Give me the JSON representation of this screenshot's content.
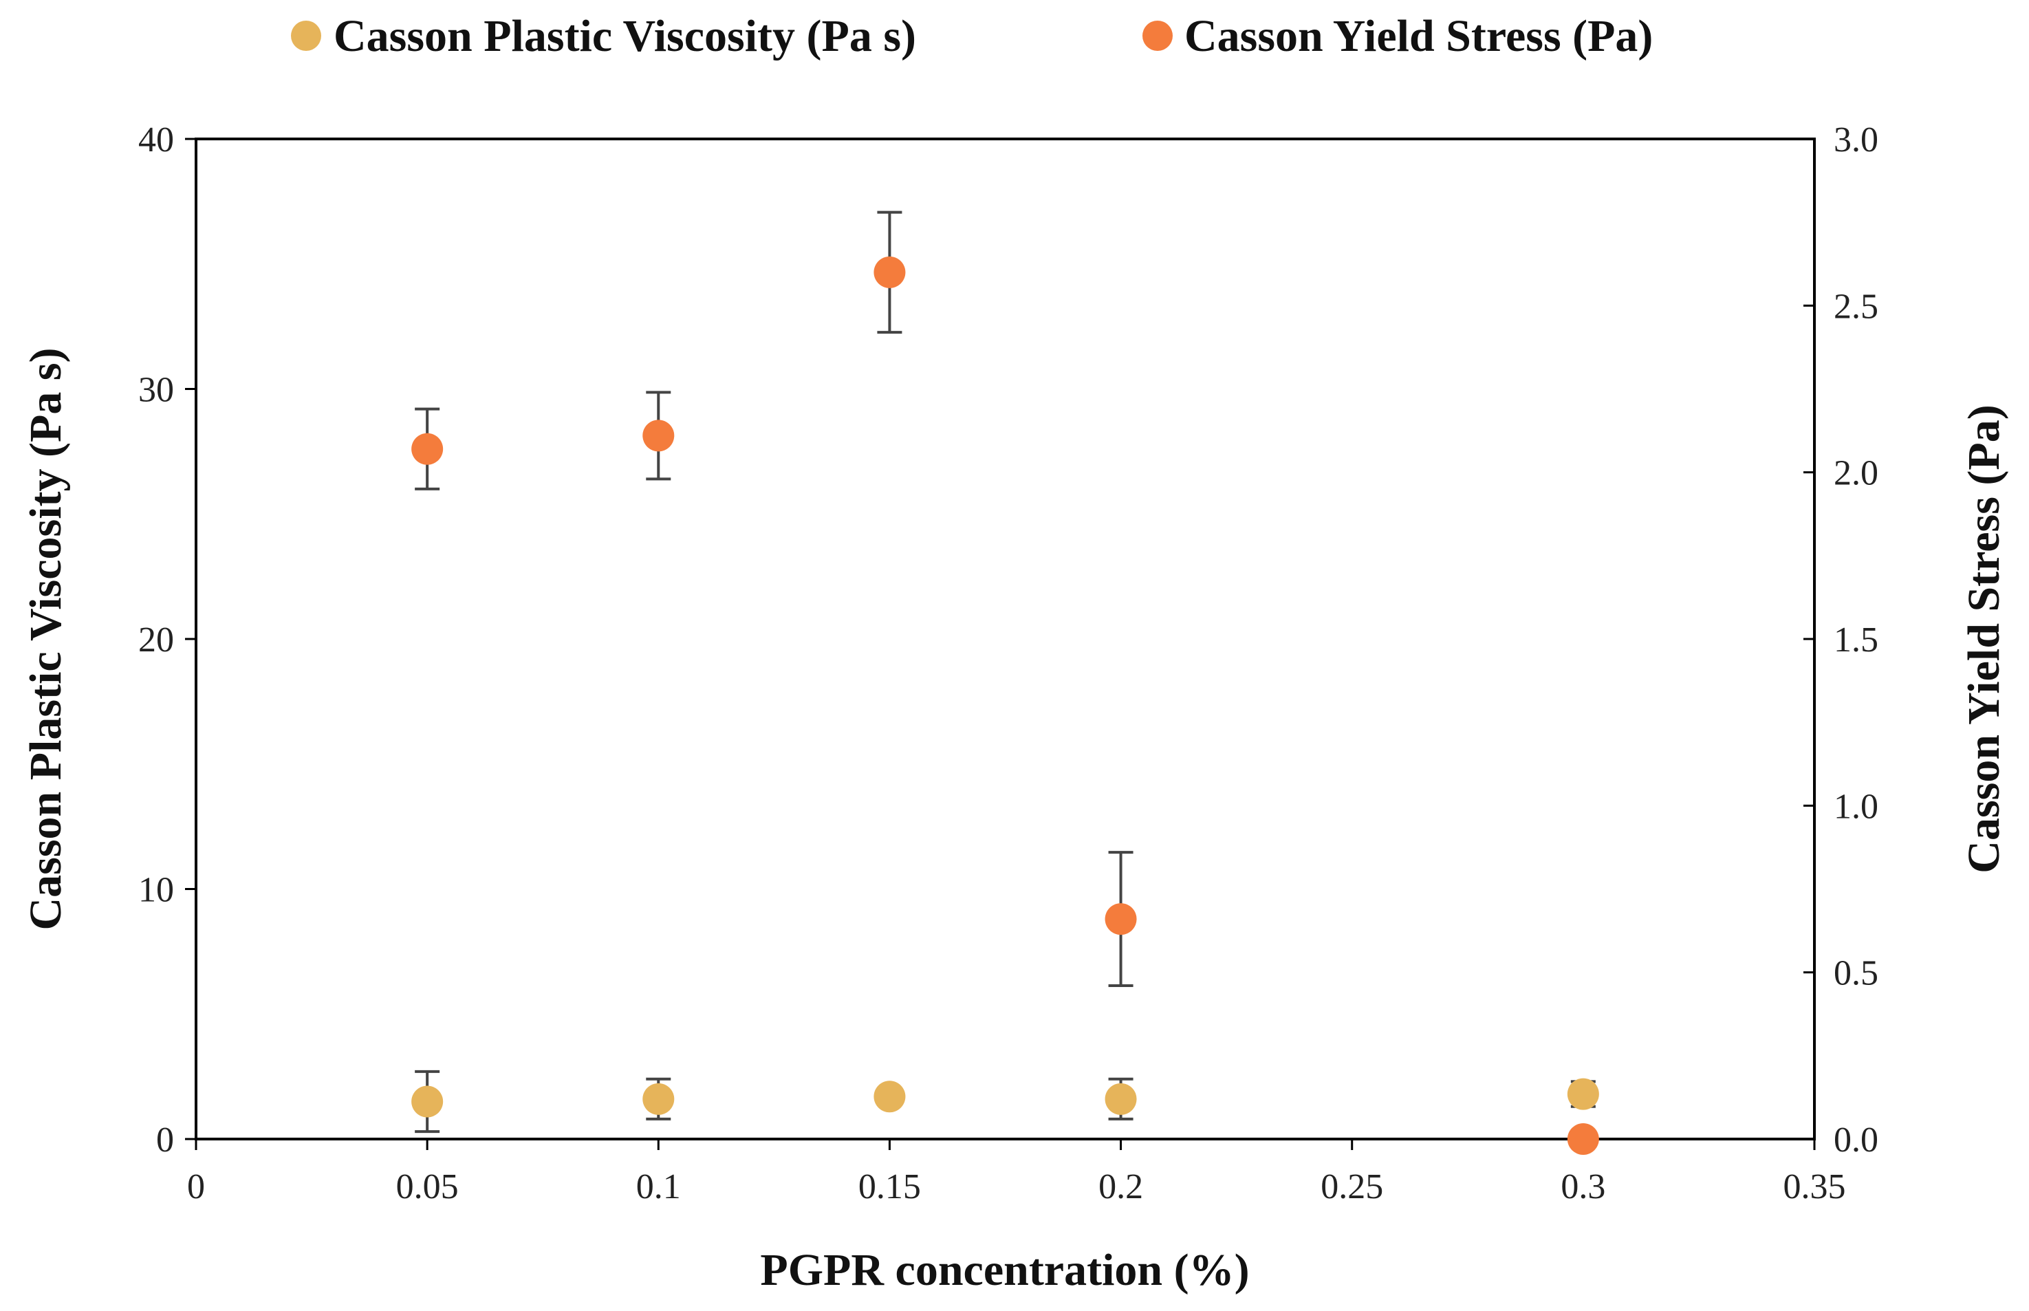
{
  "chart_data": {
    "type": "scatter",
    "x": [
      0.05,
      0.1,
      0.15,
      0.2,
      0.3
    ],
    "xlabel": "PGPR concentration (%)",
    "xlim": [
      0,
      0.35
    ],
    "xticks": [
      "0",
      "0.05",
      "0.1",
      "0.15",
      "0.2",
      "0.25",
      "0.3",
      "0.35"
    ],
    "ylabel": "Casson Plastic Viscosity (Pa s)",
    "ylim": [
      0,
      40
    ],
    "yticks": [
      "0",
      "10",
      "20",
      "30",
      "40"
    ],
    "y2label": "Casson Yield Stress (Pa)",
    "y2lim": [
      0,
      3.0
    ],
    "y2ticks": [
      "0.0",
      "0.5",
      "1.0",
      "1.5",
      "2.0",
      "2.5",
      "3.0"
    ],
    "legend_position": "top",
    "series": [
      {
        "name": "Casson Plastic Viscosity (Pa s)",
        "axis": "left",
        "color": "#E6B45A",
        "values": [
          1.5,
          1.6,
          1.7,
          1.6,
          1.8
        ],
        "errors": [
          1.2,
          0.8,
          0.0,
          0.8,
          0.5
        ]
      },
      {
        "name": "Casson Yield Stress (Pa)",
        "axis": "right",
        "color": "#F47C3C",
        "values": [
          2.07,
          2.11,
          2.6,
          0.66,
          0.0
        ],
        "errors": [
          0.12,
          0.13,
          0.18,
          0.2,
          0.0
        ]
      }
    ]
  }
}
